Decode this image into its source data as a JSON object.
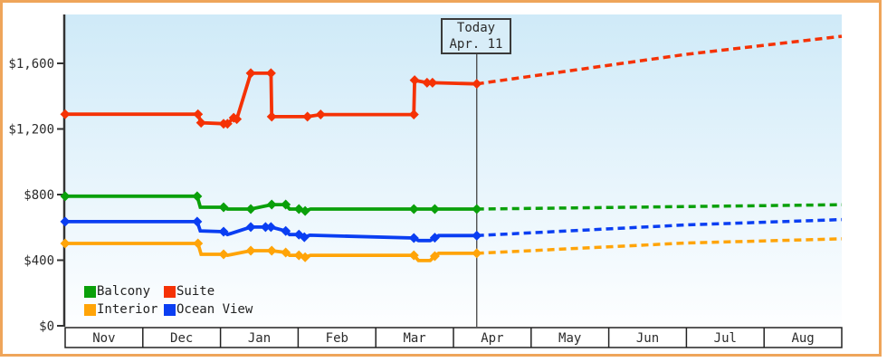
{
  "today_marker": {
    "line1": "Today",
    "line2": "Apr. 11",
    "month_position": 5.3
  },
  "y_axis": {
    "tick_labels": [
      "$0",
      "$400",
      "$800",
      "$1,200",
      "$1,600"
    ],
    "tick_values": [
      0,
      400,
      800,
      1200,
      1600
    ]
  },
  "x_axis": {
    "months": [
      "Nov",
      "Dec",
      "Jan",
      "Feb",
      "Mar",
      "Apr",
      "May",
      "Jun",
      "Jul",
      "Aug"
    ]
  },
  "legend": {
    "rows": [
      [
        "Balcony",
        "Suite"
      ],
      [
        "Interior",
        "Ocean View"
      ]
    ]
  },
  "palette": {
    "card_border": "#efa55a",
    "plot_bg_top": "#cfeaf8",
    "plot_bg_bottom": "#fdfeff",
    "axis": "#333333",
    "band_border": "#222222",
    "today_line": "#444444",
    "text": "#2b2b2b"
  },
  "chart_data": {
    "type": "line",
    "title": "",
    "xlabel": "",
    "ylabel": "",
    "x_unit": "months, 0 = start of Nov, 10 = end of Aug",
    "xlim": [
      0,
      10
    ],
    "ylim": [
      0,
      1900
    ],
    "grid": false,
    "legend_position": "bottom-left inside plot",
    "today_x": 5.3,
    "note": "solid = price history with diamond markers; dashed = forecast after Today Apr. 11",
    "series": [
      {
        "name": "Interior",
        "color": "#ffa408",
        "points": [
          [
            0,
            502,
            1
          ],
          [
            1.71,
            502,
            1
          ],
          [
            1.75,
            436,
            0
          ],
          [
            2.04,
            436,
            1
          ],
          [
            2.09,
            430,
            0
          ],
          [
            2.39,
            458,
            1
          ],
          [
            2.66,
            458,
            1
          ],
          [
            2.84,
            447,
            1
          ],
          [
            2.89,
            430,
            0
          ],
          [
            3.01,
            430,
            1
          ],
          [
            3.09,
            418,
            1
          ],
          [
            3.16,
            430,
            0
          ],
          [
            4.49,
            430,
            1
          ],
          [
            4.55,
            398,
            0
          ],
          [
            4.7,
            398,
            0
          ],
          [
            4.76,
            425,
            1
          ],
          [
            4.81,
            442,
            0
          ],
          [
            5.3,
            442,
            1
          ]
        ],
        "forecast": [
          [
            5.3,
            442
          ],
          [
            8,
            505
          ],
          [
            10,
            530
          ]
        ]
      },
      {
        "name": "Ocean View",
        "color": "#0a3ef2",
        "points": [
          [
            0,
            635,
            1
          ],
          [
            1.7,
            635,
            1
          ],
          [
            1.74,
            578,
            0
          ],
          [
            2.04,
            574,
            1
          ],
          [
            2.09,
            556,
            0
          ],
          [
            2.39,
            602,
            1
          ],
          [
            2.58,
            602,
            1
          ],
          [
            2.65,
            602,
            1
          ],
          [
            2.84,
            578,
            1
          ],
          [
            2.89,
            556,
            0
          ],
          [
            3.01,
            556,
            1
          ],
          [
            3.08,
            540,
            1
          ],
          [
            3.15,
            552,
            0
          ],
          [
            4.49,
            535,
            1
          ],
          [
            4.55,
            520,
            0
          ],
          [
            4.7,
            520,
            0
          ],
          [
            4.76,
            537,
            1
          ],
          [
            4.81,
            550,
            0
          ],
          [
            5.3,
            550,
            1
          ]
        ],
        "forecast": [
          [
            5.3,
            550
          ],
          [
            8,
            615
          ],
          [
            10,
            648
          ]
        ]
      },
      {
        "name": "Balcony",
        "color": "#0aa00a",
        "points": [
          [
            0,
            790,
            1
          ],
          [
            1.7,
            790,
            1
          ],
          [
            1.74,
            723,
            0
          ],
          [
            2.04,
            723,
            1
          ],
          [
            2.09,
            712,
            0
          ],
          [
            2.39,
            712,
            1
          ],
          [
            2.66,
            739,
            1
          ],
          [
            2.84,
            739,
            1
          ],
          [
            2.89,
            712,
            0
          ],
          [
            3.01,
            712,
            1
          ],
          [
            3.09,
            700,
            1
          ],
          [
            3.16,
            712,
            0
          ],
          [
            4.49,
            712,
            1
          ],
          [
            4.76,
            712,
            1
          ],
          [
            5.3,
            712,
            1
          ]
        ],
        "forecast": [
          [
            5.3,
            712
          ],
          [
            10,
            738
          ]
        ]
      },
      {
        "name": "Suite",
        "color": "#f53205",
        "points": [
          [
            0,
            1290,
            1
          ],
          [
            1.71,
            1290,
            1
          ],
          [
            1.75,
            1238,
            1
          ],
          [
            2.04,
            1232,
            1
          ],
          [
            2.09,
            1232,
            1
          ],
          [
            2.17,
            1268,
            1
          ],
          [
            2.21,
            1260,
            1
          ],
          [
            2.39,
            1540,
            1
          ],
          [
            2.65,
            1540,
            1
          ],
          [
            2.66,
            1275,
            1
          ],
          [
            3.12,
            1275,
            1
          ],
          [
            3.29,
            1288,
            1
          ],
          [
            4.49,
            1288,
            1
          ],
          [
            4.5,
            1497,
            1
          ],
          [
            4.66,
            1482,
            1
          ],
          [
            4.73,
            1482,
            1
          ],
          [
            5.3,
            1475,
            1
          ]
        ],
        "forecast": [
          [
            5.3,
            1475
          ],
          [
            8,
            1655
          ],
          [
            10,
            1765
          ]
        ]
      }
    ]
  }
}
